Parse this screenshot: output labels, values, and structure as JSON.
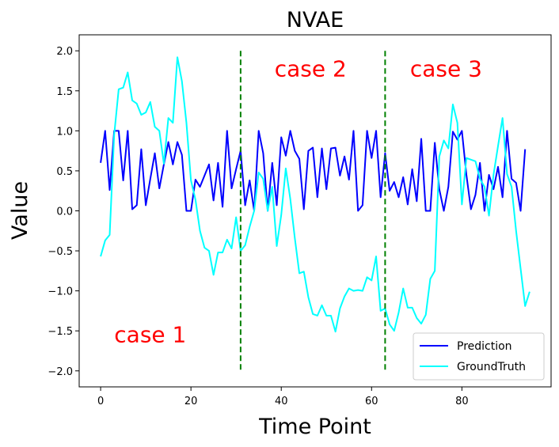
{
  "chart_data": {
    "type": "line",
    "title": "NVAE",
    "xlabel": "Time Point",
    "ylabel": "Value",
    "xlim": [
      -4.75,
      99.75
    ],
    "ylim": [
      -2.2,
      2.2
    ],
    "xticks": [
      0,
      20,
      40,
      60,
      80
    ],
    "yticks": [
      -2.0,
      -1.5,
      -1.0,
      -0.5,
      0.0,
      0.5,
      1.0,
      1.5,
      2.0
    ],
    "series": [
      {
        "name": "Prediction",
        "color": "#0000ff",
        "x": [
          0,
          1,
          2,
          3,
          4,
          5,
          6,
          7,
          8,
          9,
          10,
          11,
          12,
          13,
          14,
          15,
          16,
          17,
          18,
          19,
          20,
          21,
          22,
          23,
          24,
          25,
          26,
          27,
          28,
          29,
          30,
          31,
          32,
          33,
          34,
          35,
          36,
          37,
          38,
          39,
          40,
          41,
          42,
          43,
          44,
          45,
          46,
          47,
          48,
          49,
          50,
          51,
          52,
          53,
          54,
          55,
          56,
          57,
          58,
          59,
          60,
          61,
          62,
          63,
          64,
          65,
          66,
          67,
          68,
          69,
          70,
          71,
          72,
          73,
          74,
          75,
          76,
          77,
          78,
          79,
          80,
          81,
          82,
          83,
          84,
          85,
          86,
          87,
          88,
          89,
          90,
          91,
          92,
          93,
          94,
          95
        ],
        "y": [
          0.6,
          1.0,
          0.26,
          1.0,
          1.0,
          0.38,
          1.0,
          0.02,
          0.07,
          0.77,
          0.07,
          0.4,
          0.72,
          0.28,
          0.58,
          0.86,
          0.58,
          0.86,
          0.7,
          0.0,
          0.0,
          0.39,
          0.3,
          0.44,
          0.58,
          0.13,
          0.6,
          0.05,
          1.0,
          0.28,
          0.52,
          0.75,
          0.07,
          0.38,
          0.0,
          1.0,
          0.72,
          0.0,
          0.6,
          0.07,
          0.92,
          0.69,
          1.0,
          0.75,
          0.65,
          0.02,
          0.75,
          0.79,
          0.17,
          0.78,
          0.27,
          0.78,
          0.79,
          0.44,
          0.68,
          0.39,
          1.0,
          0.0,
          0.07,
          1.0,
          0.66,
          1.0,
          0.17,
          0.72,
          0.25,
          0.36,
          0.17,
          0.42,
          0.08,
          0.52,
          0.12,
          0.9,
          0.0,
          0.0,
          0.85,
          0.27,
          0.0,
          0.3,
          0.99,
          0.89,
          1.0,
          0.45,
          0.02,
          0.2,
          0.6,
          0.0,
          0.45,
          0.27,
          0.55,
          0.17,
          1.0,
          0.4,
          0.35,
          0.0,
          0.77,
          null
        ]
      },
      {
        "name": "GroundTruth",
        "color": "#00ffff",
        "x": [
          0,
          1,
          2,
          3,
          4,
          5,
          6,
          7,
          8,
          9,
          10,
          11,
          12,
          13,
          14,
          15,
          16,
          17,
          18,
          19,
          20,
          21,
          22,
          23,
          24,
          25,
          26,
          27,
          28,
          29,
          30,
          31,
          32,
          33,
          34,
          35,
          36,
          37,
          38,
          39,
          40,
          41,
          42,
          43,
          44,
          45,
          46,
          47,
          48,
          49,
          50,
          51,
          52,
          53,
          54,
          55,
          56,
          57,
          58,
          59,
          60,
          61,
          62,
          63,
          64,
          65,
          66,
          67,
          68,
          69,
          70,
          71,
          72,
          73,
          74,
          75,
          76,
          77,
          78,
          79,
          80,
          81,
          82,
          83,
          84,
          85,
          86,
          87,
          88,
          89,
          90,
          91,
          92,
          93,
          94,
          95
        ],
        "y": [
          -0.57,
          -0.37,
          -0.3,
          0.95,
          1.52,
          1.54,
          1.73,
          1.38,
          1.34,
          1.2,
          1.23,
          1.36,
          1.05,
          1.0,
          0.59,
          1.16,
          1.1,
          1.92,
          1.62,
          1.1,
          0.38,
          0.14,
          -0.25,
          -0.46,
          -0.5,
          -0.8,
          -0.52,
          -0.52,
          -0.36,
          -0.47,
          -0.08,
          -0.5,
          -0.43,
          -0.2,
          0.0,
          0.48,
          0.4,
          -0.0,
          0.3,
          -0.44,
          -0.05,
          0.53,
          0.15,
          -0.34,
          -0.78,
          -0.76,
          -1.08,
          -1.29,
          -1.31,
          -1.18,
          -1.31,
          -1.31,
          -1.51,
          -1.22,
          -1.07,
          -0.97,
          -1.0,
          -0.99,
          -1.0,
          -0.83,
          -0.87,
          -0.57,
          -1.25,
          -1.22,
          -1.42,
          -1.5,
          -1.27,
          -0.97,
          -1.21,
          -1.21,
          -1.34,
          -1.41,
          -1.3,
          -0.85,
          -0.75,
          0.68,
          0.88,
          0.78,
          1.33,
          1.1,
          0.08,
          0.66,
          0.64,
          0.62,
          0.4,
          0.3,
          -0.06,
          0.45,
          0.81,
          1.16,
          0.46,
          0.3,
          -0.25,
          -0.72,
          -1.19,
          -1.01
        ]
      }
    ],
    "vlines": [
      31,
      63
    ],
    "vline_color": "#008000",
    "annotations": [
      {
        "text": "case 1",
        "x": 11,
        "y": -1.64
      },
      {
        "text": "case 2",
        "x": 46.5,
        "y": 1.68
      },
      {
        "text": "case 3",
        "x": 76.5,
        "y": 1.68
      }
    ],
    "annotation_color": "#ff0000",
    "legend_position": "lower-right"
  }
}
